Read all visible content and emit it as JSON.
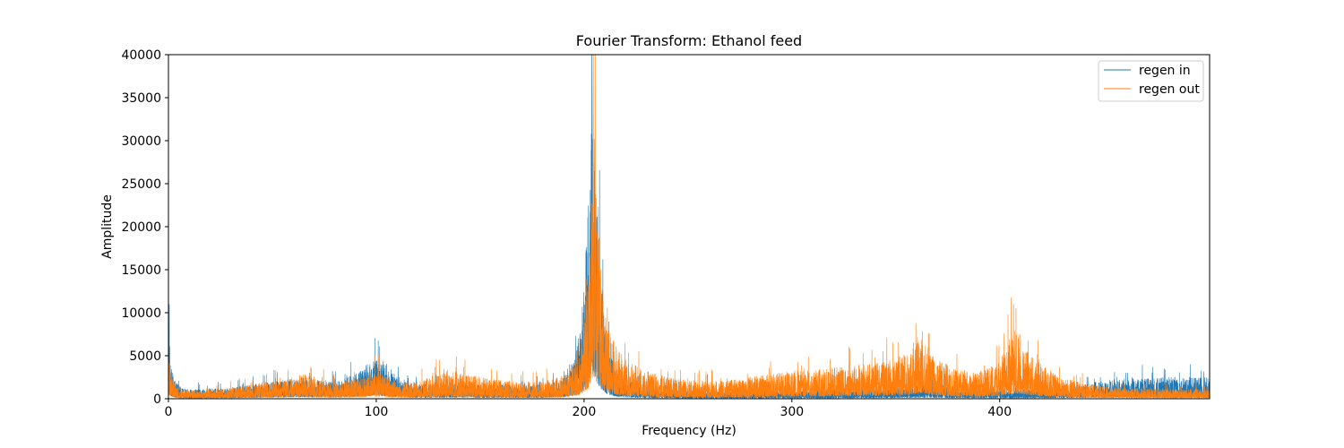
{
  "chart_data": {
    "type": "line",
    "title": "Fourier Transform: Ethanol feed",
    "xlabel": "Frequency (Hz)",
    "ylabel": "Amplitude",
    "xlim": [
      0,
      501
    ],
    "ylim": [
      0,
      40000
    ],
    "xticks": [
      0,
      100,
      200,
      300,
      400
    ],
    "yticks": [
      0,
      5000,
      10000,
      15000,
      20000,
      25000,
      30000,
      35000,
      40000
    ],
    "grid": false,
    "legend_position": "top-right",
    "series": [
      {
        "name": "regen in",
        "color": "#1f77b4",
        "envelope": {
          "x": [
            0,
            1,
            3,
            6,
            10,
            20,
            30,
            40,
            50,
            60,
            65,
            70,
            80,
            90,
            95,
            100,
            105,
            110,
            120,
            130,
            140,
            150,
            160,
            170,
            180,
            190,
            195,
            198,
            200,
            202,
            203,
            204,
            205,
            206,
            208,
            210,
            212,
            215,
            220,
            230,
            240,
            250,
            260,
            270,
            280,
            290,
            300,
            320,
            340,
            360,
            365,
            370,
            380,
            400,
            405,
            410,
            420,
            440,
            450,
            460,
            470,
            480,
            490,
            501
          ],
          "y": [
            4800,
            2500,
            1200,
            700,
            600,
            650,
            700,
            900,
            1100,
            1300,
            1400,
            1200,
            1100,
            1600,
            2200,
            2500,
            2300,
            1400,
            900,
            1000,
            1100,
            900,
            900,
            900,
            900,
            1300,
            2500,
            4500,
            7500,
            13000,
            19000,
            21000,
            18000,
            13000,
            8000,
            5000,
            3000,
            2000,
            1200,
            700,
            600,
            550,
            500,
            500,
            550,
            550,
            550,
            600,
            700,
            900,
            1000,
            900,
            700,
            600,
            600,
            600,
            700,
            900,
            1200,
            1300,
            1300,
            1400,
            1400,
            1400
          ]
        }
      },
      {
        "name": "regen out",
        "color": "#ff7f0e",
        "envelope": {
          "x": [
            0,
            1,
            3,
            6,
            10,
            20,
            30,
            40,
            50,
            60,
            65,
            70,
            80,
            90,
            95,
            100,
            105,
            110,
            120,
            130,
            135,
            140,
            150,
            160,
            170,
            180,
            190,
            195,
            198,
            200,
            202,
            203,
            204,
            205,
            206,
            208,
            210,
            212,
            215,
            220,
            230,
            240,
            250,
            260,
            270,
            280,
            290,
            300,
            320,
            340,
            350,
            355,
            360,
            363,
            365,
            368,
            370,
            380,
            390,
            400,
            405,
            407,
            410,
            415,
            420,
            430,
            440,
            450,
            460,
            470,
            480,
            490,
            501
          ],
          "y": [
            3500,
            2000,
            900,
            600,
            550,
            600,
            700,
            1000,
            1100,
            1400,
            1600,
            1300,
            1000,
            1300,
            1600,
            1700,
            1500,
            1000,
            1100,
            1600,
            1800,
            1600,
            1400,
            1200,
            1100,
            1100,
            1400,
            2200,
            3200,
            5000,
            8000,
            12000,
            16000,
            17000,
            13000,
            9000,
            6000,
            4500,
            3500,
            2500,
            1800,
            1400,
            1200,
            1100,
            1200,
            1400,
            1600,
            1800,
            2000,
            2300,
            2600,
            3000,
            4000,
            4500,
            4000,
            3000,
            2500,
            1900,
            1800,
            2400,
            4000,
            4500,
            3600,
            2800,
            2200,
            1400,
            1000,
            800,
            700,
            650,
            650,
            600,
            600
          ]
        }
      }
    ]
  }
}
